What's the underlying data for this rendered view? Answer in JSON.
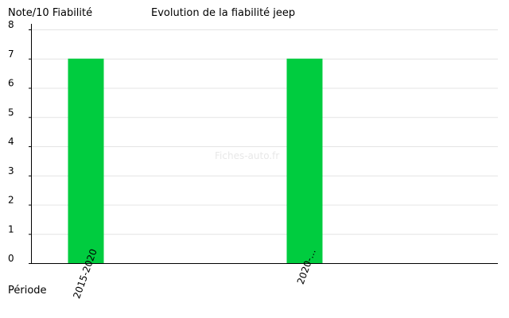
{
  "chart_data": {
    "type": "bar",
    "title": "Evolution de la fiabilité jeep",
    "ylabel": "Note/10 Fiabilité",
    "xlabel": "Période",
    "categories": [
      "2015-2020",
      "2020-..."
    ],
    "values": [
      7,
      7
    ],
    "ylim": [
      0,
      8
    ],
    "yticks": [
      "0",
      "1",
      "2",
      "3",
      "4",
      "5",
      "6",
      "7",
      "8"
    ],
    "grid": true,
    "bar_color": "#00cc3f",
    "watermark": "Fiches-auto.fr"
  }
}
